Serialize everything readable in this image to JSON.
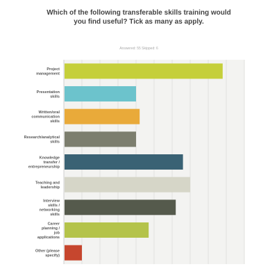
{
  "chart_data": {
    "type": "bar",
    "orientation": "horizontal",
    "title": "Which of the following transferable skills training would you find useful? Tick as many as apply.",
    "subtitle": "Answered: 55   Skipped: 6",
    "categories": [
      "Project management",
      "Presentation skills",
      "Written/oral communication skills",
      "Research/analytical skills",
      "Knowledge transfer / entrepreneurship",
      "Teaching and leadership",
      "Interview skills / networking skills",
      "Career planning / job applications",
      "Other (please specify)"
    ],
    "values": [
      88,
      40,
      42,
      40,
      66,
      70,
      62,
      47,
      10
    ],
    "xlim": [
      0,
      100
    ],
    "colors": [
      "#c5cf3a",
      "#6cc3cc",
      "#e9aa3a",
      "#7c7e6e",
      "#3a6274",
      "#d6d6c8",
      "#555a4c",
      "#b4c34a",
      "#c6462e"
    ],
    "grid": true,
    "legend": "none"
  }
}
